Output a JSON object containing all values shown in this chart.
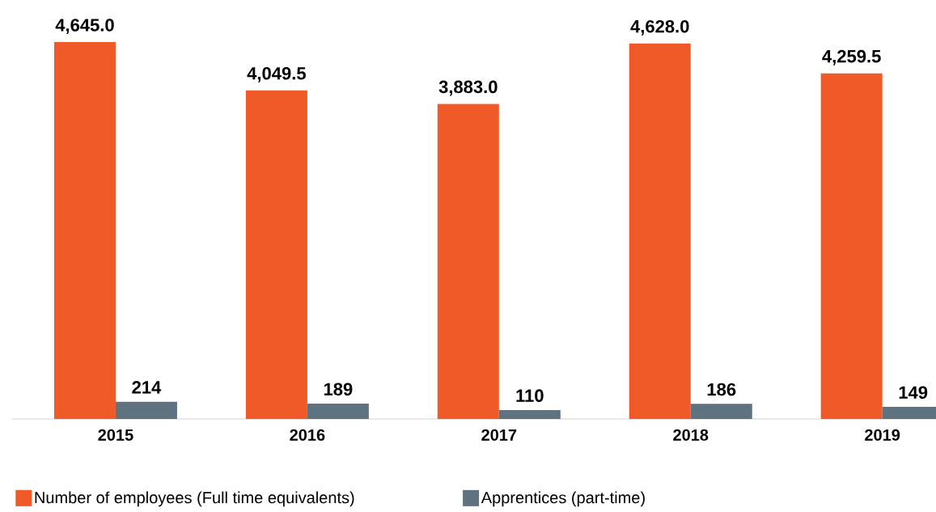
{
  "chart_data": {
    "type": "bar",
    "categories": [
      "2015",
      "2016",
      "2017",
      "2018",
      "2019"
    ],
    "series": [
      {
        "name": "Number of employees (Full time equivalents)",
        "color": "#f05a28",
        "values": [
          4645.0,
          4049.5,
          3883.0,
          4628.0,
          4259.5
        ],
        "value_labels": [
          "4,645.0",
          "4,049.5",
          "3,883.0",
          "4,628.0",
          "4,259.5"
        ]
      },
      {
        "name": "Apprentices (part-time)",
        "color": "#5f7280",
        "values": [
          214,
          189,
          110,
          186,
          149
        ],
        "value_labels": [
          "214",
          "189",
          "110",
          "186",
          "149"
        ]
      }
    ],
    "legend": "bottom"
  }
}
